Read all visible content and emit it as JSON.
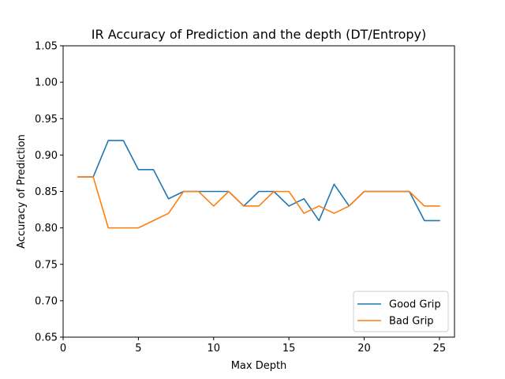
{
  "chart_data": {
    "type": "line",
    "title": "IR Accuracy of Prediction and the depth (DT/Entropy)",
    "xlabel": "Max Depth",
    "ylabel": "Accuracy of Prediction",
    "xlim": [
      0,
      26
    ],
    "ylim": [
      0.65,
      1.05
    ],
    "xticks": [
      0,
      5,
      10,
      15,
      20,
      25
    ],
    "xtick_labels": [
      "0",
      "5",
      "10",
      "15",
      "20",
      "25"
    ],
    "yticks": [
      0.65,
      0.7,
      0.75,
      0.8,
      0.85,
      0.9,
      0.95,
      1.0,
      1.05
    ],
    "ytick_labels": [
      "0.65",
      "0.70",
      "0.75",
      "0.80",
      "0.85",
      "0.90",
      "0.95",
      "1.00",
      "1.05"
    ],
    "grid": false,
    "legend_position": "lower-right",
    "x": [
      1,
      2,
      3,
      4,
      5,
      6,
      7,
      8,
      9,
      10,
      11,
      12,
      13,
      14,
      15,
      16,
      17,
      18,
      19,
      20,
      21,
      22,
      23,
      24,
      25
    ],
    "series": [
      {
        "name": "Good Grip",
        "color": "#1f77b4",
        "values": [
          0.87,
          0.87,
          0.92,
          0.92,
          0.88,
          0.88,
          0.84,
          0.85,
          0.85,
          0.85,
          0.85,
          0.83,
          0.85,
          0.85,
          0.83,
          0.84,
          0.81,
          0.86,
          0.83,
          0.85,
          0.85,
          0.85,
          0.85,
          0.81,
          0.81
        ]
      },
      {
        "name": "Bad Grip",
        "color": "#ff7f0e",
        "values": [
          0.87,
          0.87,
          0.8,
          0.8,
          0.8,
          0.81,
          0.82,
          0.85,
          0.85,
          0.83,
          0.85,
          0.83,
          0.83,
          0.85,
          0.85,
          0.82,
          0.83,
          0.82,
          0.83,
          0.85,
          0.85,
          0.85,
          0.85,
          0.83,
          0.83
        ]
      }
    ]
  }
}
